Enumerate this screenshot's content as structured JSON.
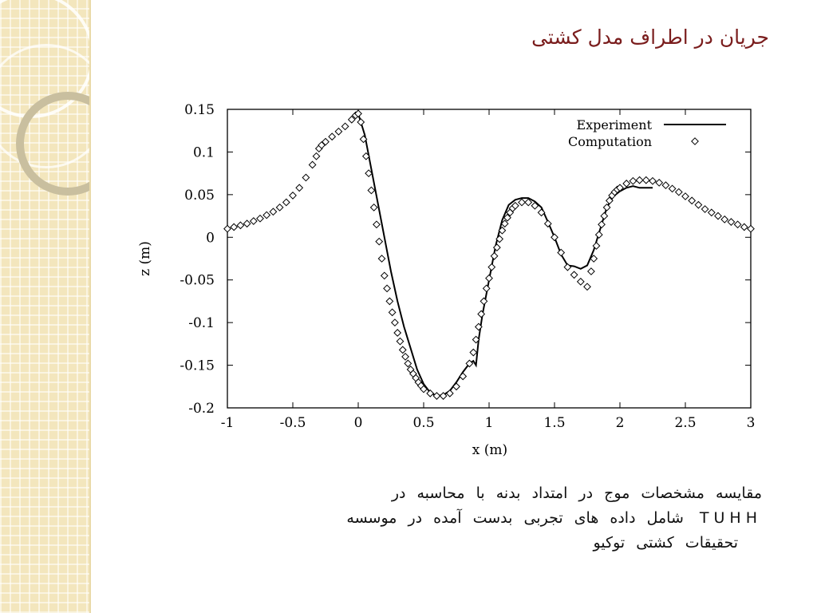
{
  "slide": {
    "title": "جریان در اطراف مدل کشتی",
    "caption_lines": [
      "مقایسه مشخصات موج در امتداد بدنه با محاسبه در",
      "TUHH شامل داده های تجربی بدست آمده در موسسه",
      "تحقیقات کشتی توکیو"
    ],
    "colors": {
      "title": "#7a1d1d",
      "sidebar": "#f3e6bd"
    }
  },
  "chart_data": {
    "type": "line",
    "xlabel": "x (m)",
    "ylabel": "z (m)",
    "xlim": [
      -1,
      3
    ],
    "ylim": [
      -0.2,
      0.15
    ],
    "x_ticks": [
      -1,
      -0.5,
      0,
      0.5,
      1,
      1.5,
      2,
      2.5,
      3
    ],
    "x_tick_labels": [
      "-1",
      "-0.5",
      "0",
      "0.5",
      "1",
      "1.5",
      "2",
      "2.5",
      "3"
    ],
    "y_ticks": [
      0.15,
      0.1,
      0.05,
      0,
      -0.05,
      -0.1,
      -0.15,
      -0.2
    ],
    "y_tick_labels": [
      "0.15",
      "0.1",
      "0.05",
      "0",
      "-0.05",
      "-0.1",
      "-0.15",
      "-0.2"
    ],
    "legend_position": "top-right",
    "grid": false,
    "series": [
      {
        "name": "Experiment",
        "style": "line",
        "x": [
          0.0,
          0.05,
          0.1,
          0.15,
          0.2,
          0.25,
          0.3,
          0.35,
          0.4,
          0.45,
          0.5,
          0.55,
          0.6,
          0.65,
          0.7,
          0.75,
          0.8,
          0.85,
          0.88,
          0.9,
          0.92,
          0.95,
          1.0,
          1.05,
          1.1,
          1.15,
          1.2,
          1.25,
          1.3,
          1.35,
          1.4,
          1.45,
          1.5,
          1.55,
          1.6,
          1.65,
          1.7,
          1.75,
          1.8,
          1.85,
          1.9,
          1.95,
          2.0,
          2.05,
          2.1,
          2.15,
          2.2,
          2.25
        ],
        "y": [
          0.145,
          0.12,
          0.08,
          0.04,
          0.0,
          -0.04,
          -0.075,
          -0.105,
          -0.13,
          -0.155,
          -0.172,
          -0.182,
          -0.186,
          -0.185,
          -0.18,
          -0.17,
          -0.158,
          -0.148,
          -0.145,
          -0.15,
          -0.12,
          -0.09,
          -0.05,
          -0.01,
          0.02,
          0.038,
          0.044,
          0.046,
          0.046,
          0.042,
          0.035,
          0.018,
          0.0,
          -0.02,
          -0.033,
          -0.034,
          -0.037,
          -0.033,
          -0.015,
          0.01,
          0.035,
          0.048,
          0.054,
          0.058,
          0.06,
          0.058,
          0.058,
          0.058
        ]
      },
      {
        "name": "Computation",
        "style": "markers",
        "x": [
          -1.0,
          -0.95,
          -0.9,
          -0.85,
          -0.8,
          -0.75,
          -0.7,
          -0.65,
          -0.6,
          -0.55,
          -0.5,
          -0.45,
          -0.4,
          -0.35,
          -0.32,
          -0.3,
          -0.28,
          -0.25,
          -0.2,
          -0.15,
          -0.1,
          -0.05,
          -0.02,
          0.0,
          0.02,
          0.04,
          0.06,
          0.08,
          0.1,
          0.12,
          0.14,
          0.16,
          0.18,
          0.2,
          0.22,
          0.24,
          0.26,
          0.28,
          0.3,
          0.32,
          0.34,
          0.36,
          0.38,
          0.4,
          0.42,
          0.44,
          0.46,
          0.48,
          0.5,
          0.55,
          0.6,
          0.65,
          0.7,
          0.75,
          0.8,
          0.85,
          0.88,
          0.9,
          0.92,
          0.94,
          0.96,
          0.98,
          1.0,
          1.02,
          1.04,
          1.06,
          1.08,
          1.1,
          1.12,
          1.14,
          1.16,
          1.18,
          1.2,
          1.25,
          1.3,
          1.35,
          1.4,
          1.45,
          1.5,
          1.55,
          1.6,
          1.65,
          1.7,
          1.75,
          1.78,
          1.8,
          1.82,
          1.84,
          1.86,
          1.88,
          1.9,
          1.92,
          1.94,
          1.96,
          1.98,
          2.0,
          2.05,
          2.1,
          2.15,
          2.2,
          2.25,
          2.3,
          2.35,
          2.4,
          2.45,
          2.5,
          2.55,
          2.6,
          2.65,
          2.7,
          2.75,
          2.8,
          2.85,
          2.9,
          2.95,
          3.0
        ],
        "y": [
          0.01,
          0.012,
          0.014,
          0.016,
          0.019,
          0.022,
          0.026,
          0.03,
          0.035,
          0.041,
          0.049,
          0.058,
          0.07,
          0.085,
          0.095,
          0.104,
          0.108,
          0.112,
          0.118,
          0.124,
          0.13,
          0.138,
          0.143,
          0.145,
          0.135,
          0.115,
          0.095,
          0.075,
          0.055,
          0.035,
          0.015,
          -0.005,
          -0.025,
          -0.045,
          -0.06,
          -0.075,
          -0.088,
          -0.1,
          -0.112,
          -0.122,
          -0.132,
          -0.14,
          -0.148,
          -0.155,
          -0.16,
          -0.165,
          -0.17,
          -0.174,
          -0.178,
          -0.183,
          -0.186,
          -0.186,
          -0.183,
          -0.175,
          -0.163,
          -0.148,
          -0.135,
          -0.12,
          -0.105,
          -0.09,
          -0.075,
          -0.06,
          -0.048,
          -0.035,
          -0.022,
          -0.012,
          -0.002,
          0.008,
          0.016,
          0.023,
          0.029,
          0.034,
          0.037,
          0.041,
          0.041,
          0.037,
          0.029,
          0.016,
          0.0,
          -0.018,
          -0.035,
          -0.044,
          -0.052,
          -0.058,
          -0.04,
          -0.025,
          -0.01,
          0.003,
          0.015,
          0.025,
          0.035,
          0.043,
          0.049,
          0.053,
          0.056,
          0.058,
          0.063,
          0.066,
          0.067,
          0.067,
          0.066,
          0.064,
          0.061,
          0.057,
          0.053,
          0.048,
          0.043,
          0.038,
          0.033,
          0.029,
          0.025,
          0.021,
          0.018,
          0.015,
          0.012,
          0.01
        ]
      }
    ]
  }
}
